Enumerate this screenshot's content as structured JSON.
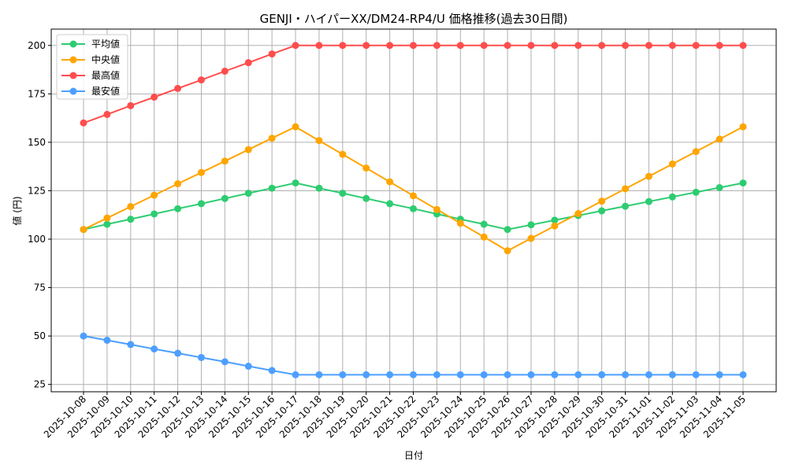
{
  "chart_data": {
    "type": "line",
    "title": "GENJI・ハイパーXX/DM24-RP4/U 価格推移(過去30日間)",
    "xlabel": "日付",
    "ylabel": "値 (円)",
    "ylim": [
      22,
      208
    ],
    "yticks": [
      25,
      50,
      75,
      100,
      125,
      150,
      175,
      200
    ],
    "grid": true,
    "legend_position": "upper left",
    "categories": [
      "2025-10-08",
      "2025-10-09",
      "2025-10-10",
      "2025-10-11",
      "2025-10-12",
      "2025-10-13",
      "2025-10-14",
      "2025-10-15",
      "2025-10-16",
      "2025-10-17",
      "2025-10-18",
      "2025-10-19",
      "2025-10-20",
      "2025-10-21",
      "2025-10-22",
      "2025-10-23",
      "2025-10-24",
      "2025-10-25",
      "2025-10-26",
      "2025-10-27",
      "2025-10-28",
      "2025-10-29",
      "2025-10-30",
      "2025-10-31",
      "2025-11-01",
      "2025-11-02",
      "2025-11-03",
      "2025-11-04",
      "2025-11-05"
    ],
    "series": [
      {
        "name": "平均値",
        "color": "#2ecc71",
        "values": [
          105,
          107.7,
          110.3,
          113,
          115.7,
          118.3,
          121,
          123.7,
          126.3,
          129,
          126.3,
          123.7,
          121,
          118.3,
          115.7,
          113,
          110.3,
          107.7,
          105,
          107.4,
          109.8,
          112.2,
          114.6,
          117,
          119.4,
          121.8,
          124.2,
          126.6,
          129
        ]
      },
      {
        "name": "中央値",
        "color": "#ffa500",
        "values": [
          105,
          110.9,
          116.8,
          122.7,
          128.6,
          134.4,
          140.3,
          146.2,
          152.1,
          158,
          150.9,
          143.8,
          136.7,
          129.6,
          122.4,
          115.3,
          108.2,
          101.1,
          94,
          100.4,
          106.8,
          113.2,
          119.6,
          126,
          132.4,
          138.8,
          145.2,
          151.6,
          158
        ]
      },
      {
        "name": "最高値",
        "color": "#ff4d4d",
        "values": [
          160,
          164.4,
          168.9,
          173.3,
          177.8,
          182.2,
          186.7,
          191.1,
          195.6,
          200,
          200,
          200,
          200,
          200,
          200,
          200,
          200,
          200,
          200,
          200,
          200,
          200,
          200,
          200,
          200,
          200,
          200,
          200,
          200
        ]
      },
      {
        "name": "最安値",
        "color": "#4d9fff",
        "values": [
          50,
          47.8,
          45.6,
          43.3,
          41.1,
          38.9,
          36.7,
          34.4,
          32.2,
          30,
          30,
          30,
          30,
          30,
          30,
          30,
          30,
          30,
          30,
          30,
          30,
          30,
          30,
          30,
          30,
          30,
          30,
          30,
          30
        ]
      }
    ]
  }
}
